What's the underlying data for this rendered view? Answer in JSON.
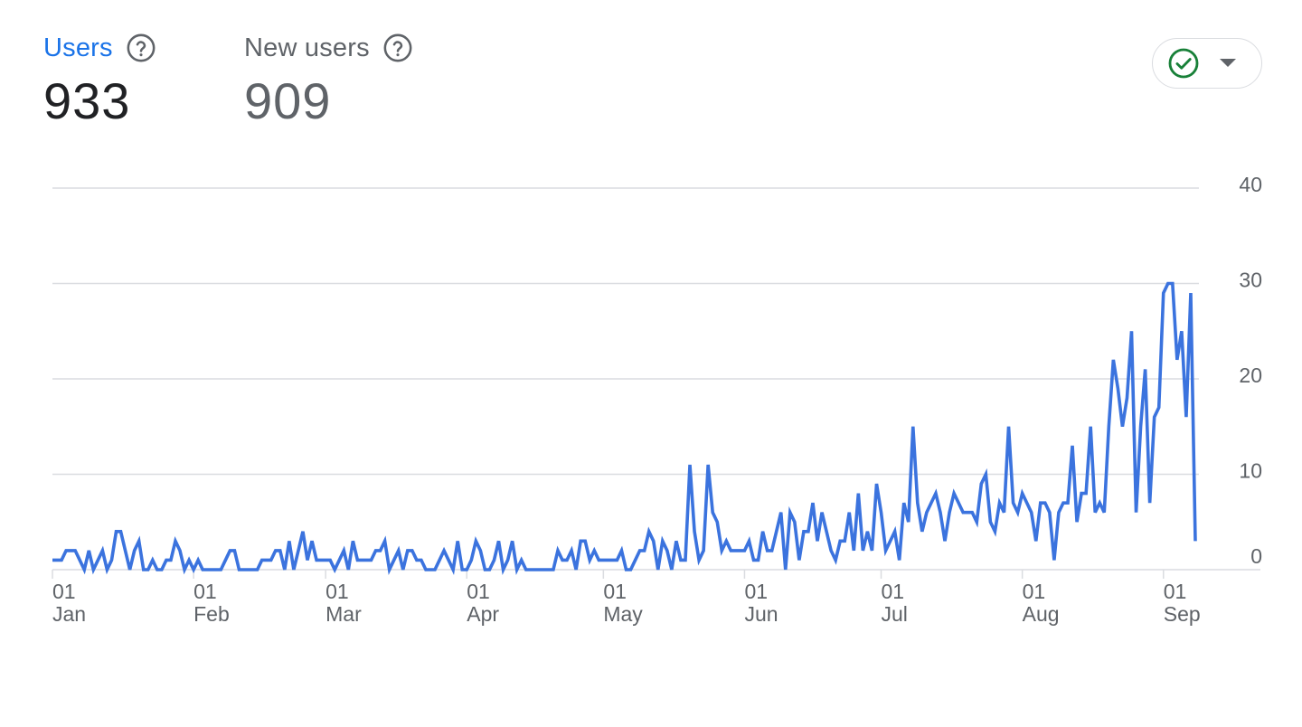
{
  "metrics": {
    "users": {
      "label": "Users",
      "value": "933"
    },
    "new_users": {
      "label": "New users",
      "value": "909"
    }
  },
  "icons": {
    "help": "help-circle-icon",
    "status": "check-circle-icon",
    "dropdown": "caret-down-icon"
  },
  "colors": {
    "accent": "#1a73e8",
    "line": "#3b73de",
    "status_ok": "#188038",
    "grid": "#dadce0",
    "muted_text": "#5f6368"
  },
  "chart_data": {
    "type": "line",
    "title": "",
    "xlabel": "",
    "ylabel": "",
    "ylim": [
      0,
      40
    ],
    "y_ticks": [
      "0",
      "10",
      "20",
      "30",
      "40"
    ],
    "y_axis_position": "right",
    "x_ticks": [
      {
        "day": "01",
        "month": "Jan"
      },
      {
        "day": "01",
        "month": "Feb"
      },
      {
        "day": "01",
        "month": "Mar"
      },
      {
        "day": "01",
        "month": "Apr"
      },
      {
        "day": "01",
        "month": "May"
      },
      {
        "day": "01",
        "month": "Jun"
      },
      {
        "day": "01",
        "month": "Jul"
      },
      {
        "day": "01",
        "month": "Aug"
      },
      {
        "day": "01",
        "month": "Sep"
      }
    ],
    "grid": true,
    "series": [
      {
        "x_start": "2024-01-01",
        "x_end": "2024-09-02",
        "values": [
          1,
          1,
          1,
          2,
          2,
          2,
          1,
          0,
          2,
          0,
          1,
          2,
          0,
          1,
          4,
          4,
          2,
          0,
          2,
          3,
          0,
          0,
          1,
          0,
          0,
          1,
          1,
          3,
          2,
          0,
          1,
          0,
          1,
          0,
          0,
          0,
          0,
          0,
          1,
          2,
          2,
          0,
          0,
          0,
          0,
          0,
          1,
          1,
          1,
          2,
          2,
          0,
          3,
          0,
          2,
          4,
          1,
          3,
          1,
          1,
          1,
          1,
          0,
          1,
          2,
          0,
          3,
          1,
          1,
          1,
          1,
          2,
          2,
          3,
          0,
          1,
          2,
          0,
          2,
          2,
          1,
          1,
          0,
          0,
          0,
          1,
          2,
          1,
          0,
          3,
          0,
          0,
          1,
          3,
          2,
          0,
          0,
          1,
          3,
          0,
          1,
          3,
          0,
          1,
          0,
          0,
          0,
          0,
          0,
          0,
          0,
          2,
          1,
          1,
          2,
          0,
          3,
          3,
          1,
          2,
          1,
          1,
          1,
          1,
          1,
          2,
          0,
          0,
          1,
          2,
          2,
          4,
          3,
          0,
          3,
          2,
          0,
          3,
          1,
          1,
          11,
          4,
          1,
          2,
          11,
          6,
          5,
          2,
          3,
          2,
          2,
          2,
          2,
          3,
          1,
          1,
          4,
          2,
          2,
          4,
          6,
          0,
          6,
          5,
          1,
          4,
          4,
          7,
          3,
          6,
          4,
          2,
          1,
          3,
          3,
          6,
          2,
          8,
          2,
          4,
          2,
          9,
          6,
          2,
          3,
          4,
          1,
          7,
          5,
          15,
          7,
          4,
          6,
          7,
          8,
          6,
          3,
          6,
          8,
          7,
          6,
          6,
          6,
          5,
          9,
          10,
          5,
          4,
          7,
          6,
          15,
          7,
          6,
          8,
          7,
          6,
          3,
          7,
          7,
          6,
          1,
          6,
          7,
          7,
          13,
          5,
          8,
          8,
          15,
          6,
          7,
          6,
          15,
          22,
          19,
          15,
          18,
          25,
          6,
          15,
          21,
          7,
          16,
          17,
          29,
          30,
          30,
          22,
          25,
          16,
          29,
          3
        ]
      }
    ]
  }
}
